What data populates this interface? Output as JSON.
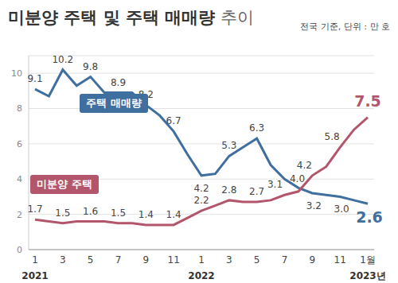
{
  "chart_data": {
    "type": "line",
    "title": "미분양 주택 및 주택 매매량 추이",
    "subtitle": "전국 기준, 단위 : 만 호",
    "categories": [
      "1",
      null,
      "3",
      null,
      "5",
      null,
      "7",
      null,
      "9",
      null,
      "11",
      null,
      "1",
      null,
      "3",
      null,
      "5",
      null,
      "7",
      null,
      "9",
      null,
      "11",
      null,
      "1월"
    ],
    "years": [
      "2021",
      null,
      null,
      null,
      null,
      null,
      null,
      null,
      null,
      null,
      null,
      null,
      "2022",
      null,
      null,
      null,
      null,
      null,
      null,
      null,
      null,
      null,
      null,
      null,
      "2023년"
    ],
    "ylim": [
      0,
      11
    ],
    "yticks": [
      0,
      2,
      4,
      6,
      8,
      10
    ],
    "grid": true,
    "data_labels": true,
    "series": [
      {
        "name": "주택 매매량",
        "color": "#3f6f9f",
        "marker": "none",
        "values": [
          9.1,
          8.7,
          10.2,
          9.3,
          9.8,
          8.9,
          8.9,
          8.9,
          8.2,
          7.6,
          6.7,
          5.4,
          4.2,
          4.3,
          5.3,
          5.8,
          6.3,
          4.8,
          4.0,
          3.5,
          3.2,
          3.1,
          3.0,
          2.8,
          2.6
        ],
        "value_labels": [
          "9.1",
          null,
          "10.2",
          null,
          "9.8",
          null,
          "8.9",
          null,
          "8.2",
          null,
          "6.7",
          null,
          "4.2",
          null,
          "5.3",
          null,
          "6.3",
          null,
          "4.0",
          null,
          "3.2",
          null,
          "3.0",
          null,
          "2.6"
        ]
      },
      {
        "name": "미분양 주택",
        "color": "#b3566b",
        "marker": "none",
        "values": [
          1.7,
          1.6,
          1.5,
          1.6,
          1.6,
          1.6,
          1.5,
          1.5,
          1.4,
          1.4,
          1.4,
          1.8,
          2.2,
          2.5,
          2.8,
          2.7,
          2.7,
          2.8,
          3.1,
          3.3,
          4.2,
          4.7,
          5.8,
          6.8,
          7.5
        ],
        "value_labels": [
          "1.7",
          null,
          "1.5",
          null,
          "1.6",
          null,
          "1.5",
          null,
          "1.4",
          null,
          "1.4",
          null,
          "2.2",
          null,
          "2.8",
          null,
          "2.7",
          null,
          "3.1",
          null,
          "4.2",
          null,
          "5.8",
          null,
          "7.5"
        ]
      }
    ]
  }
}
